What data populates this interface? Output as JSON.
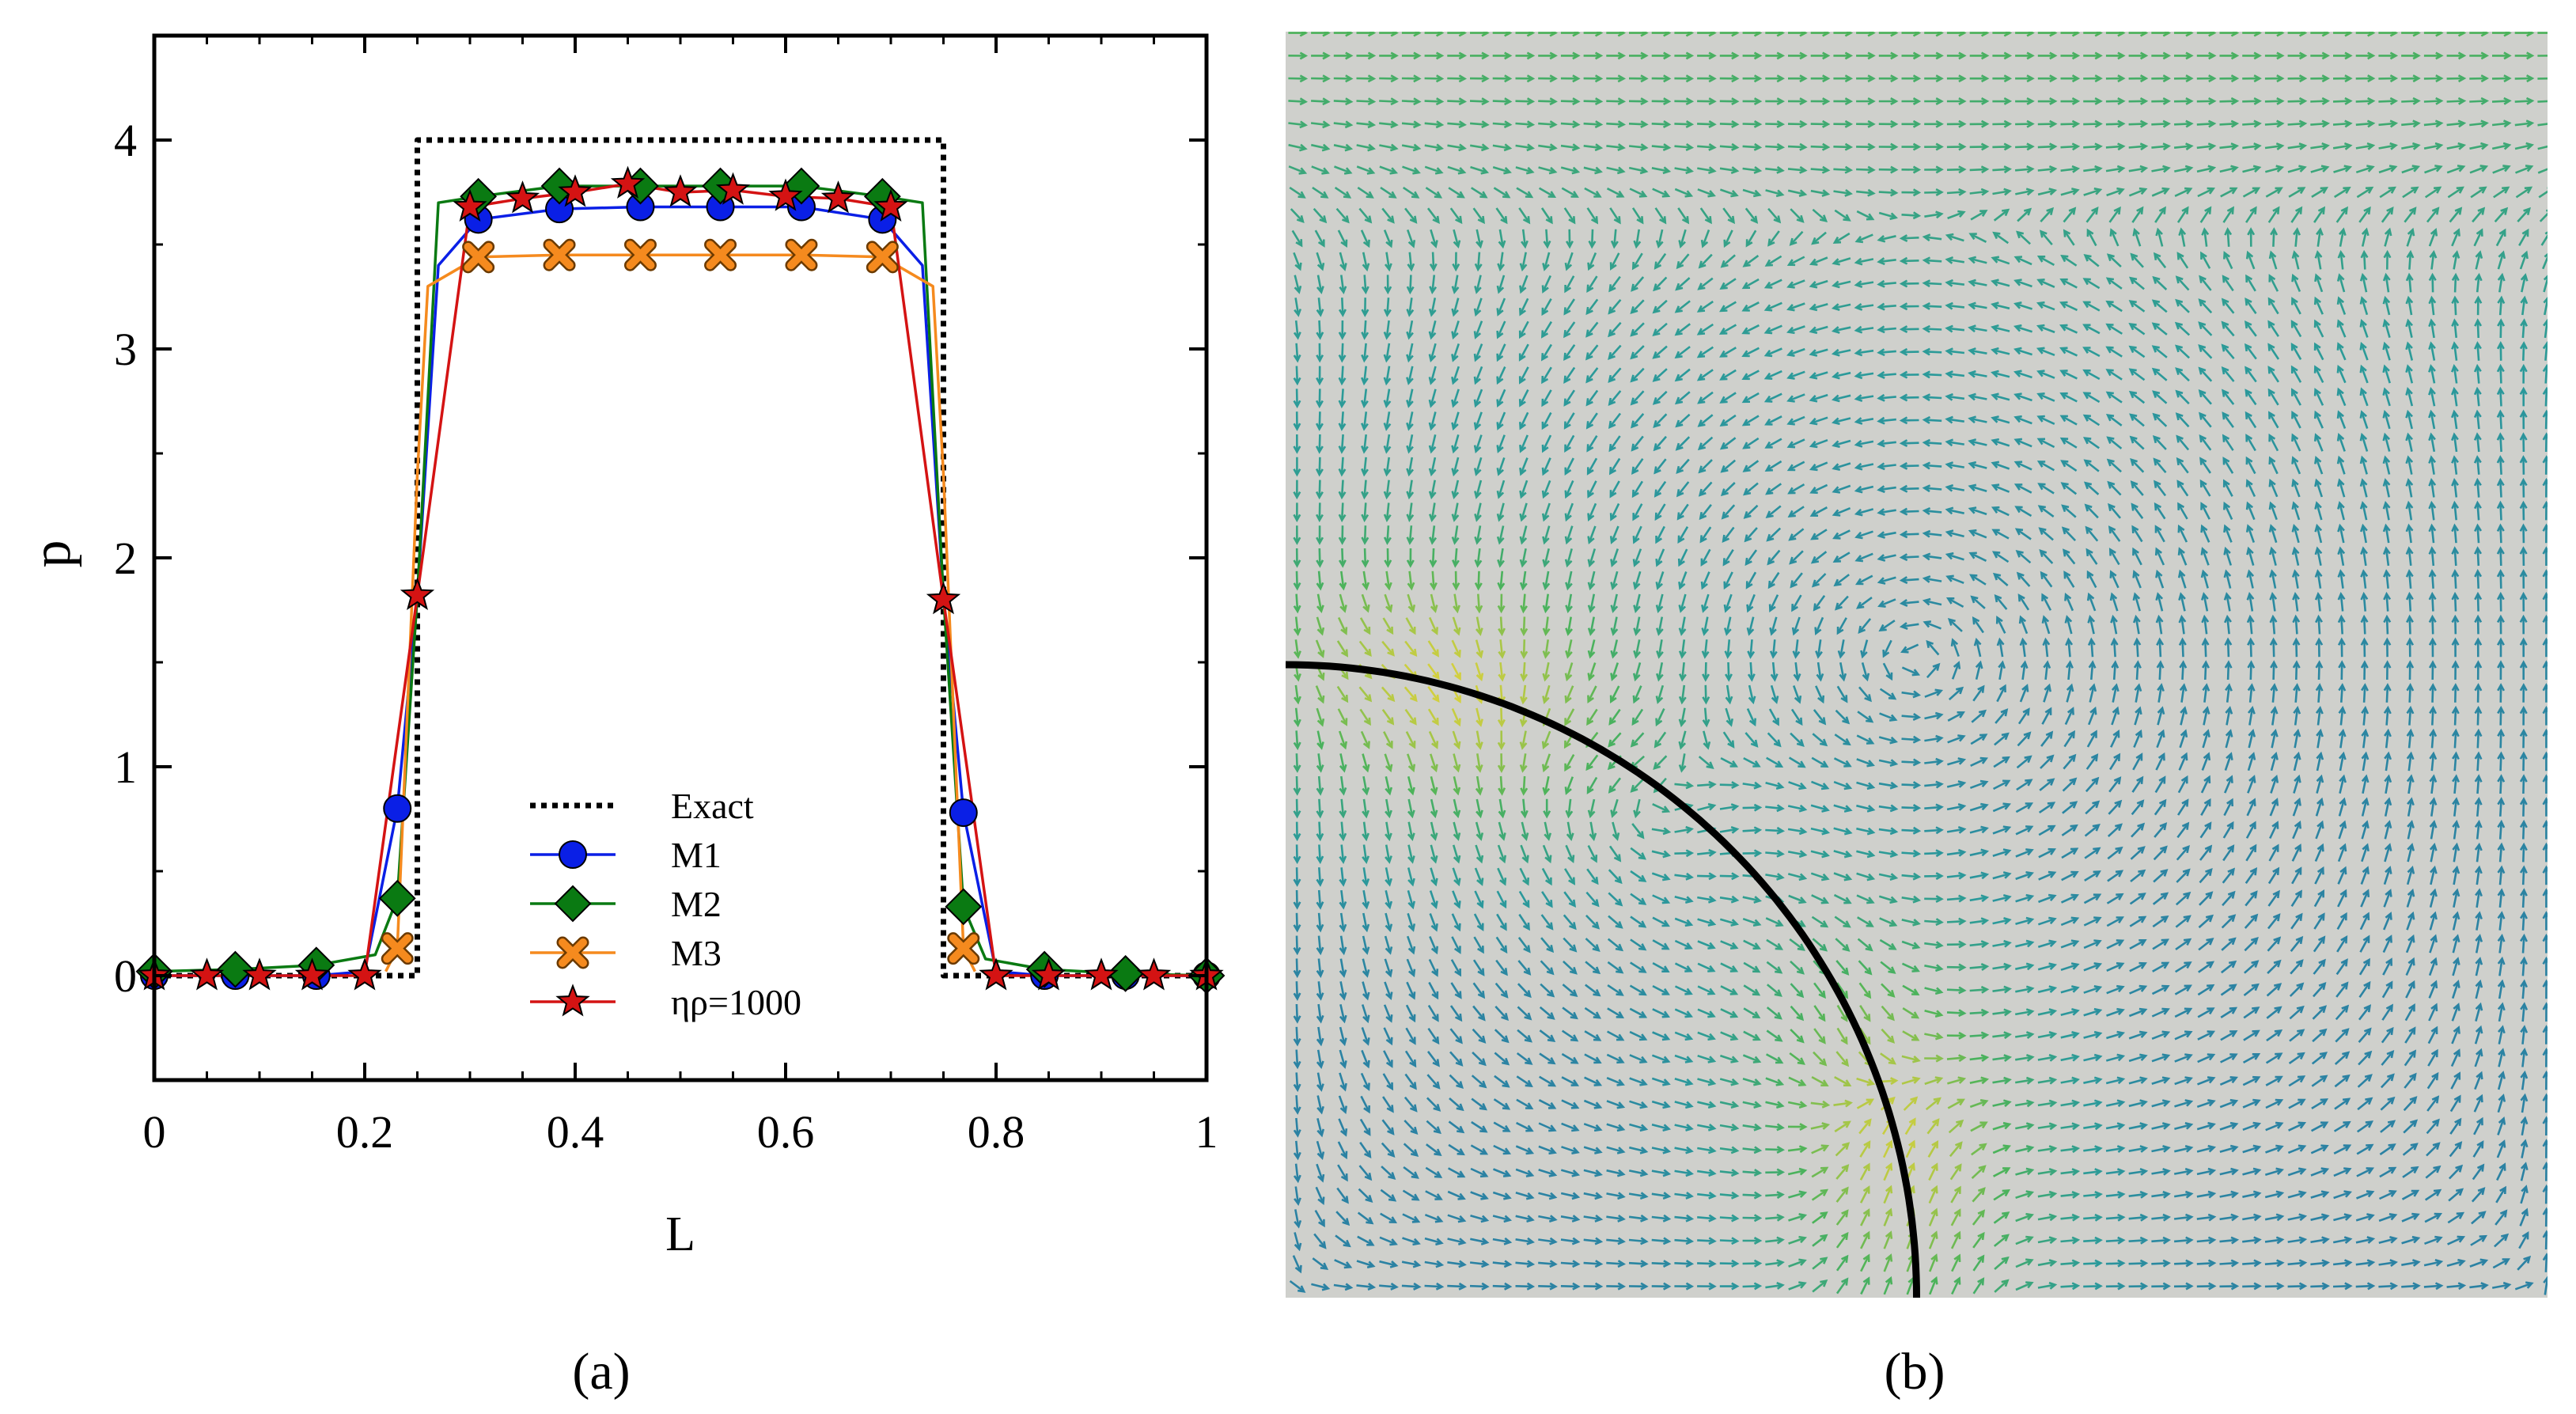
{
  "panels": {
    "a_label": "(a)",
    "b_label": "(b)"
  },
  "colors": {
    "exact": "#000000",
    "m1": "#0a1fe6",
    "m2": "#0a7a12",
    "m3": "#f58a1e",
    "eta": "#d41313",
    "field_background": "#cfd0cc",
    "interface": "#000000"
  },
  "chart_data": [
    {
      "type": "line",
      "title": "",
      "xlabel": "L",
      "ylabel": "p",
      "xlim": [
        0,
        1
      ],
      "ylim": [
        -0.5,
        4.5
      ],
      "x_ticks": [
        "0",
        "0.2",
        "0.4",
        "0.6",
        "0.8",
        "1"
      ],
      "y_ticks": [
        "0",
        "1",
        "2",
        "3",
        "4"
      ],
      "grid": false,
      "legend_position": "lower-center",
      "series": [
        {
          "name": "Exact",
          "marker": "none",
          "style": "dotted",
          "points": [
            [
              0,
              0
            ],
            [
              0.25,
              0
            ],
            [
              0.25,
              4
            ],
            [
              0.75,
              4
            ],
            [
              0.75,
              0
            ],
            [
              1,
              0
            ]
          ]
        },
        {
          "name": "M1",
          "marker": "circle",
          "style": "solid",
          "line": [
            [
              0,
              0
            ],
            [
              0.077,
              0
            ],
            [
              0.154,
              0
            ],
            [
              0.2,
              0.02
            ],
            [
              0.231,
              0.8
            ],
            [
              0.25,
              1.82
            ],
            [
              0.27,
              3.4
            ],
            [
              0.308,
              3.62
            ],
            [
              0.385,
              3.67
            ],
            [
              0.462,
              3.68
            ],
            [
              0.538,
              3.68
            ],
            [
              0.615,
              3.68
            ],
            [
              0.692,
              3.62
            ],
            [
              0.73,
              3.4
            ],
            [
              0.75,
              1.82
            ],
            [
              0.769,
              0.78
            ],
            [
              0.8,
              0.02
            ],
            [
              0.846,
              0
            ],
            [
              0.923,
              0
            ],
            [
              1,
              0
            ]
          ],
          "markers": [
            [
              0,
              0
            ],
            [
              0.077,
              0
            ],
            [
              0.154,
              0
            ],
            [
              0.231,
              0.8
            ],
            [
              0.308,
              3.62
            ],
            [
              0.385,
              3.67
            ],
            [
              0.462,
              3.68
            ],
            [
              0.538,
              3.68
            ],
            [
              0.615,
              3.68
            ],
            [
              0.692,
              3.62
            ],
            [
              0.769,
              0.78
            ],
            [
              0.846,
              0
            ],
            [
              0.923,
              0
            ],
            [
              1,
              0
            ]
          ]
        },
        {
          "name": "M2",
          "marker": "diamond",
          "style": "solid",
          "line": [
            [
              0,
              0.02
            ],
            [
              0.077,
              0.03
            ],
            [
              0.154,
              0.05
            ],
            [
              0.21,
              0.1
            ],
            [
              0.231,
              0.37
            ],
            [
              0.25,
              1.82
            ],
            [
              0.27,
              3.7
            ],
            [
              0.308,
              3.73
            ],
            [
              0.385,
              3.78
            ],
            [
              0.462,
              3.78
            ],
            [
              0.538,
              3.78
            ],
            [
              0.615,
              3.78
            ],
            [
              0.692,
              3.73
            ],
            [
              0.73,
              3.7
            ],
            [
              0.75,
              1.82
            ],
            [
              0.769,
              0.33
            ],
            [
              0.79,
              0.08
            ],
            [
              0.846,
              0.03
            ],
            [
              0.923,
              0.01
            ],
            [
              1,
              0
            ]
          ],
          "markers": [
            [
              0,
              0.02
            ],
            [
              0.077,
              0.03
            ],
            [
              0.154,
              0.05
            ],
            [
              0.231,
              0.37
            ],
            [
              0.308,
              3.73
            ],
            [
              0.385,
              3.78
            ],
            [
              0.462,
              3.78
            ],
            [
              0.538,
              3.78
            ],
            [
              0.615,
              3.78
            ],
            [
              0.692,
              3.73
            ],
            [
              0.769,
              0.33
            ],
            [
              0.846,
              0.03
            ],
            [
              0.923,
              0.01
            ],
            [
              1,
              0
            ]
          ]
        },
        {
          "name": "M3",
          "marker": "x",
          "style": "solid",
          "line": [
            [
              0.22,
              0.02
            ],
            [
              0.231,
              0.13
            ],
            [
              0.25,
              2.4
            ],
            [
              0.26,
              3.3
            ],
            [
              0.308,
              3.44
            ],
            [
              0.385,
              3.45
            ],
            [
              0.462,
              3.45
            ],
            [
              0.538,
              3.45
            ],
            [
              0.615,
              3.45
            ],
            [
              0.692,
              3.44
            ],
            [
              0.74,
              3.3
            ],
            [
              0.75,
              2.4
            ],
            [
              0.769,
              0.13
            ],
            [
              0.78,
              0.02
            ]
          ],
          "markers": [
            [
              0.231,
              0.13
            ],
            [
              0.308,
              3.44
            ],
            [
              0.385,
              3.45
            ],
            [
              0.462,
              3.45
            ],
            [
              0.538,
              3.45
            ],
            [
              0.615,
              3.45
            ],
            [
              0.692,
              3.44
            ],
            [
              0.769,
              0.13
            ]
          ]
        },
        {
          "name": "ηρ=1000",
          "marker": "star",
          "style": "solid",
          "line": [
            [
              0,
              0
            ],
            [
              0.05,
              0
            ],
            [
              0.1,
              0
            ],
            [
              0.15,
              0
            ],
            [
              0.2,
              0
            ],
            [
              0.25,
              1.82
            ],
            [
              0.3,
              3.68
            ],
            [
              0.35,
              3.72
            ],
            [
              0.4,
              3.75
            ],
            [
              0.45,
              3.79
            ],
            [
              0.5,
              3.75
            ],
            [
              0.55,
              3.76
            ],
            [
              0.6,
              3.73
            ],
            [
              0.65,
              3.72
            ],
            [
              0.7,
              3.68
            ],
            [
              0.75,
              1.8
            ],
            [
              0.8,
              0
            ],
            [
              0.85,
              0
            ],
            [
              0.9,
              0
            ],
            [
              0.95,
              0
            ],
            [
              1,
              0
            ]
          ],
          "markers": [
            [
              0,
              0
            ],
            [
              0.05,
              0
            ],
            [
              0.1,
              0
            ],
            [
              0.15,
              0
            ],
            [
              0.2,
              0
            ],
            [
              0.25,
              1.82
            ],
            [
              0.3,
              3.68
            ],
            [
              0.35,
              3.72
            ],
            [
              0.4,
              3.75
            ],
            [
              0.45,
              3.79
            ],
            [
              0.5,
              3.75
            ],
            [
              0.55,
              3.76
            ],
            [
              0.6,
              3.73
            ],
            [
              0.65,
              3.72
            ],
            [
              0.7,
              3.68
            ],
            [
              0.75,
              1.8
            ],
            [
              0.8,
              0
            ],
            [
              0.85,
              0
            ],
            [
              0.9,
              0
            ],
            [
              0.95,
              0
            ],
            [
              1,
              0
            ]
          ]
        }
      ]
    },
    {
      "type": "vector_field",
      "title": "",
      "description_kind": "velocity quiver plot colored by magnitude",
      "domain_x": [
        0,
        1
      ],
      "domain_y": [
        0,
        1
      ],
      "lid_velocity": 1,
      "interface": {
        "shape": "circle",
        "center": [
          0,
          0
        ],
        "radius": 0.5
      },
      "colormap": [
        "#2a5fb0",
        "#2b9a9a",
        "#4cb35a",
        "#e8d43a",
        "#e2582a"
      ]
    }
  ]
}
